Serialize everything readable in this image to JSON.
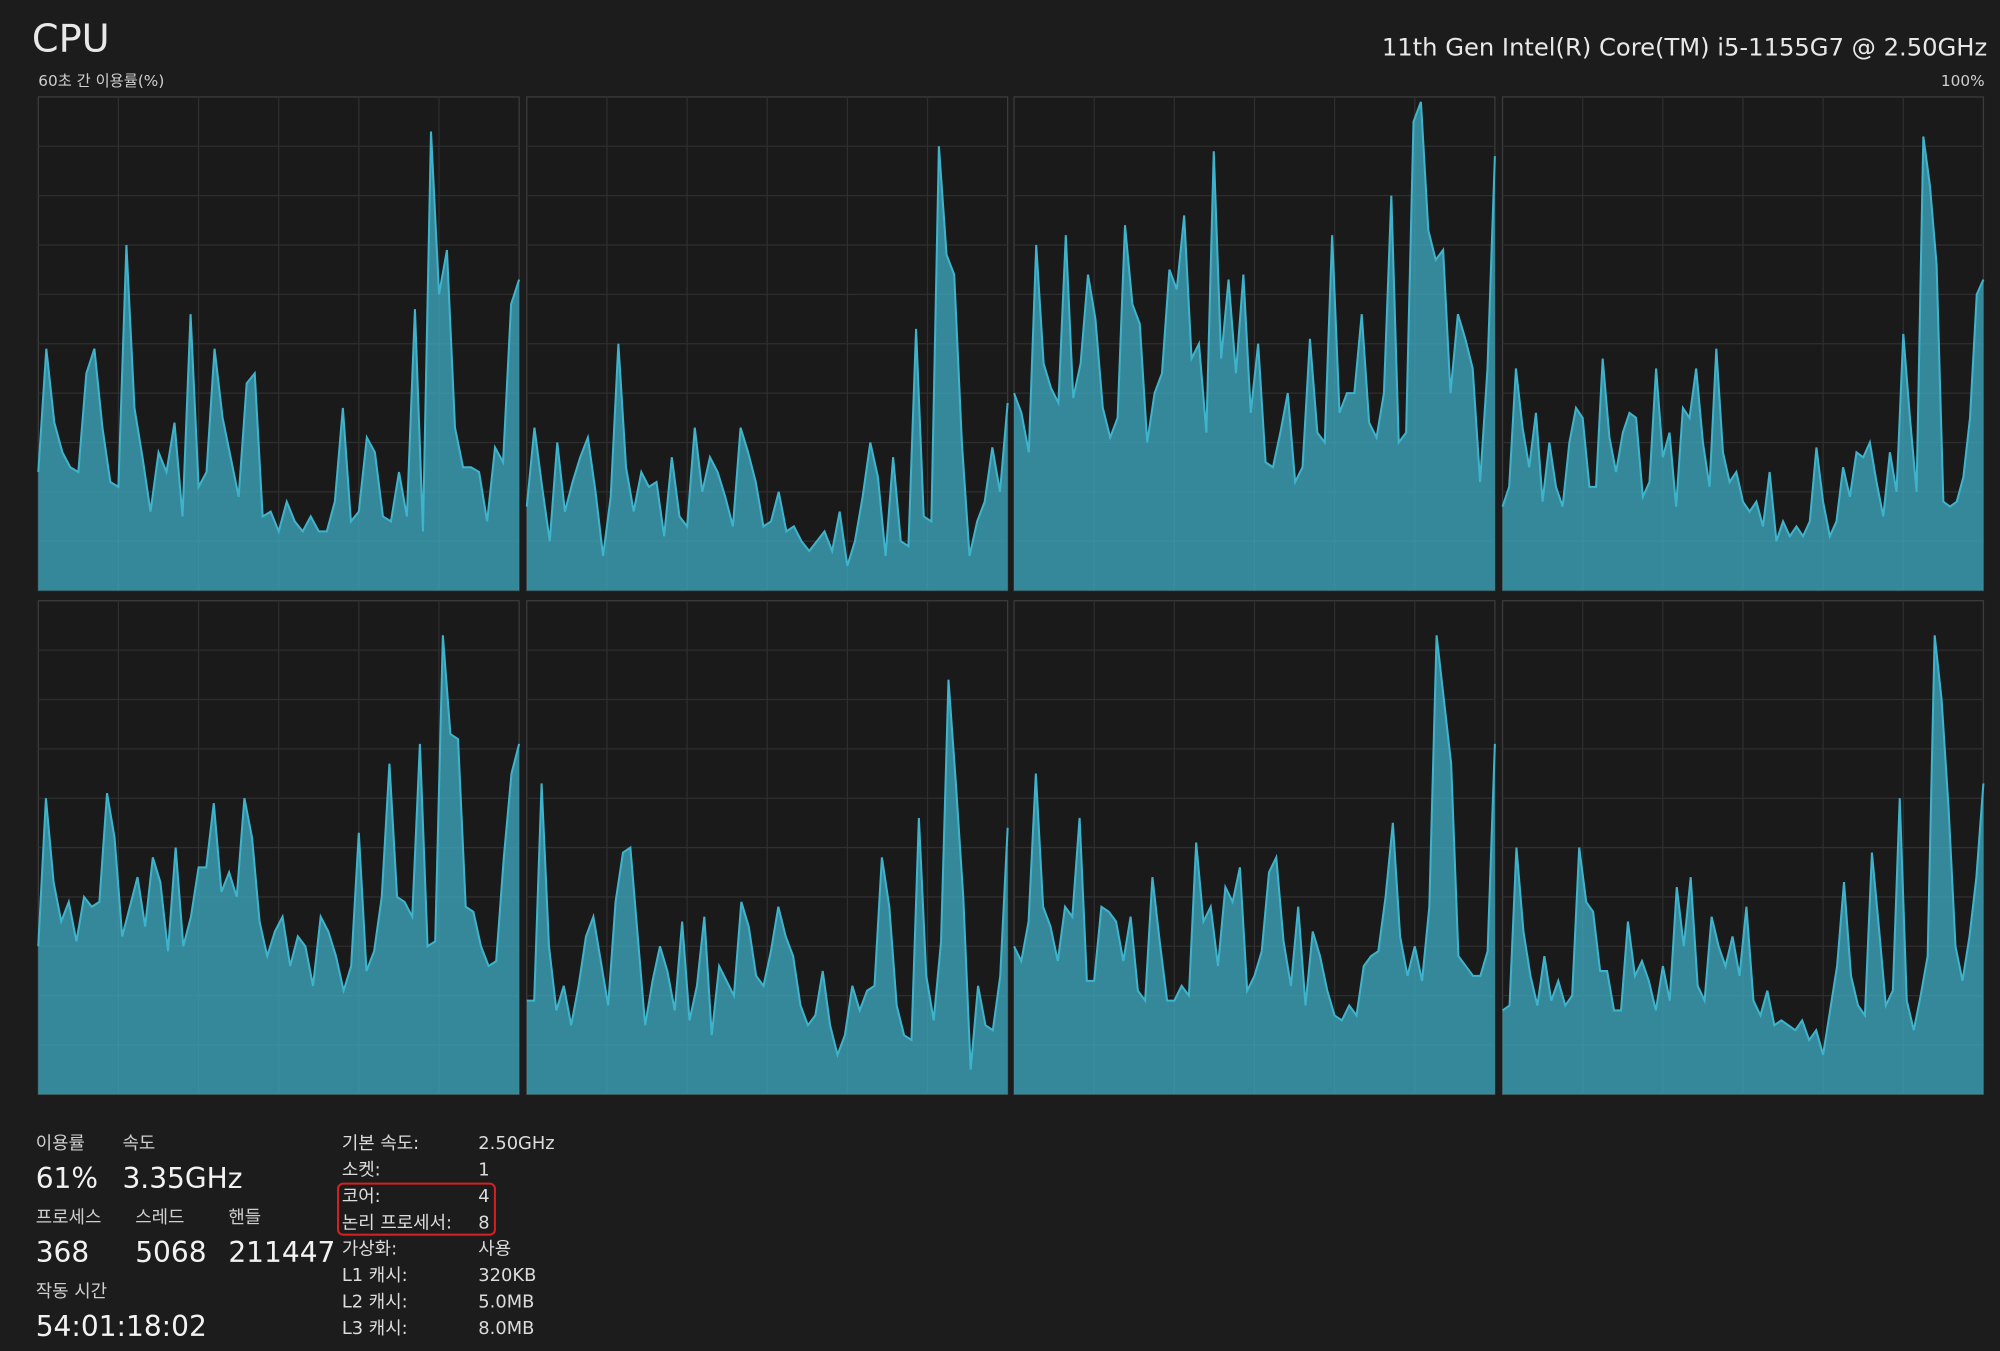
{
  "header": {
    "title": "CPU",
    "cpu_name": "11th Gen Intel(R) Core(TM) i5-1155G7 @ 2.50GHz",
    "axis_label": "60초 간 이용률(%)",
    "axis_max_label": "100%"
  },
  "chart_data": [
    {
      "type": "area",
      "ylim": [
        0,
        100
      ],
      "grid": true,
      "color": "#3fb3cb",
      "values": [
        24,
        49,
        34,
        28,
        25,
        24,
        44,
        49,
        33,
        22,
        21,
        70,
        37,
        27,
        16,
        28,
        24,
        34,
        15,
        56,
        21,
        24,
        49,
        35,
        27,
        19,
        42,
        44,
        15,
        16,
        12,
        18,
        14,
        12,
        15,
        12,
        12,
        18,
        37,
        14,
        16,
        31,
        28,
        15,
        14,
        24,
        15,
        57,
        12,
        93,
        60,
        69,
        33,
        25,
        25,
        24,
        14,
        29,
        26,
        58,
        63
      ]
    },
    {
      "type": "area",
      "ylim": [
        0,
        100
      ],
      "grid": true,
      "color": "#3fb3cb",
      "values": [
        17,
        33,
        21,
        10,
        30,
        16,
        22,
        27,
        31,
        20,
        7,
        19,
        50,
        25,
        16,
        24,
        21,
        22,
        11,
        27,
        15,
        13,
        33,
        20,
        27,
        24,
        19,
        13,
        33,
        28,
        22,
        13,
        14,
        20,
        12,
        13,
        10,
        8,
        10,
        12,
        8,
        16,
        5,
        10,
        19,
        30,
        23,
        7,
        27,
        10,
        9,
        53,
        15,
        14,
        90,
        68,
        64,
        30,
        7,
        14,
        18,
        29,
        20,
        38
      ]
    },
    {
      "type": "area",
      "ylim": [
        0,
        100
      ],
      "grid": true,
      "color": "#3fb3cb",
      "values": [
        40,
        36,
        28,
        70,
        46,
        41,
        38,
        72,
        39,
        46,
        64,
        55,
        37,
        31,
        35,
        74,
        58,
        54,
        30,
        40,
        44,
        65,
        61,
        76,
        47,
        50,
        32,
        89,
        47,
        63,
        44,
        64,
        36,
        50,
        26,
        25,
        32,
        40,
        22,
        25,
        51,
        32,
        30,
        72,
        36,
        40,
        40,
        56,
        34,
        31,
        40,
        80,
        30,
        32,
        95,
        99,
        73,
        67,
        69,
        40,
        56,
        51,
        45,
        22,
        45,
        88
      ]
    },
    {
      "type": "area",
      "ylim": [
        0,
        100
      ],
      "grid": true,
      "color": "#3fb3cb",
      "values": [
        17,
        21,
        45,
        33,
        25,
        36,
        18,
        30,
        21,
        17,
        30,
        37,
        35,
        21,
        21,
        47,
        31,
        24,
        32,
        36,
        35,
        19,
        22,
        45,
        27,
        32,
        17,
        37,
        35,
        45,
        30,
        21,
        49,
        28,
        22,
        24,
        18,
        16,
        18,
        13,
        24,
        10,
        14,
        11,
        13,
        11,
        14,
        29,
        18,
        11,
        14,
        25,
        19,
        28,
        27,
        30,
        22,
        15,
        28,
        20,
        52,
        35,
        20,
        92,
        82,
        66,
        18,
        17,
        18,
        23,
        35,
        60,
        63
      ]
    },
    {
      "type": "area",
      "ylim": [
        0,
        100
      ],
      "grid": true,
      "color": "#3fb3cb",
      "values": [
        30,
        60,
        43,
        35,
        39,
        31,
        40,
        38,
        39,
        61,
        52,
        32,
        38,
        44,
        34,
        48,
        43,
        29,
        50,
        30,
        36,
        46,
        46,
        59,
        41,
        45,
        40,
        60,
        52,
        35,
        28,
        33,
        36,
        26,
        32,
        30,
        22,
        36,
        33,
        28,
        21,
        26,
        53,
        25,
        29,
        40,
        67,
        40,
        39,
        36,
        71,
        30,
        31,
        93,
        73,
        72,
        38,
        37,
        30,
        26,
        27,
        48,
        65,
        71
      ]
    },
    {
      "type": "area",
      "ylim": [
        0,
        100
      ],
      "grid": true,
      "color": "#3fb3cb",
      "values": [
        19,
        19,
        63,
        30,
        17,
        22,
        14,
        22,
        32,
        36,
        27,
        18,
        39,
        49,
        50,
        32,
        14,
        23,
        30,
        25,
        17,
        35,
        15,
        22,
        36,
        12,
        26,
        23,
        20,
        39,
        34,
        24,
        22,
        29,
        38,
        32,
        28,
        18,
        14,
        16,
        25,
        14,
        8,
        12,
        22,
        17,
        21,
        22,
        48,
        38,
        18,
        12,
        11,
        56,
        24,
        15,
        31,
        84,
        63,
        40,
        5,
        22,
        14,
        13,
        24,
        54
      ]
    },
    {
      "type": "area",
      "ylim": [
        0,
        100
      ],
      "grid": true,
      "color": "#3fb3cb",
      "values": [
        30,
        27,
        35,
        65,
        38,
        34,
        27,
        38,
        36,
        56,
        23,
        23,
        38,
        37,
        35,
        27,
        36,
        21,
        19,
        44,
        31,
        19,
        19,
        22,
        20,
        51,
        35,
        38,
        26,
        42,
        39,
        46,
        21,
        24,
        29,
        45,
        48,
        31,
        22,
        38,
        18,
        33,
        28,
        21,
        16,
        15,
        18,
        16,
        26,
        28,
        29,
        40,
        55,
        32,
        24,
        30,
        23,
        38,
        93,
        80,
        67,
        28,
        26,
        24,
        24,
        29,
        71
      ]
    },
    {
      "type": "area",
      "ylim": [
        0,
        100
      ],
      "grid": true,
      "color": "#3fb3cb",
      "values": [
        17,
        18,
        50,
        33,
        24,
        18,
        28,
        19,
        23,
        18,
        20,
        50,
        39,
        37,
        25,
        25,
        17,
        17,
        35,
        24,
        27,
        23,
        17,
        26,
        19,
        42,
        30,
        44,
        22,
        19,
        36,
        30,
        26,
        32,
        24,
        38,
        19,
        16,
        21,
        14,
        15,
        14,
        13,
        15,
        11,
        13,
        8,
        17,
        26,
        43,
        24,
        18,
        16,
        49,
        34,
        18,
        21,
        60,
        19,
        13,
        20,
        28,
        93,
        80,
        58,
        30,
        23,
        32,
        44,
        63
      ]
    }
  ],
  "stats": {
    "utilization_label": "이용률",
    "utilization": "61%",
    "speed_label": "속도",
    "speed": "3.35GHz",
    "processes_label": "프로세스",
    "processes": 368,
    "threads_label": "스레드",
    "threads": 5068,
    "handles_label": "핸들",
    "handles": 211447,
    "uptime_label": "작동 시간",
    "uptime": "54:01:18:02"
  },
  "details": [
    [
      "기본 속도:",
      "2.50GHz"
    ],
    [
      "소켓:",
      1
    ],
    [
      "코어:",
      4
    ],
    [
      "논리 프로세서:",
      8
    ],
    [
      "가상화:",
      "사용"
    ],
    [
      "L1 캐시:",
      "320KB"
    ],
    [
      "L2 캐시:",
      "5.0MB"
    ],
    [
      "L3 캐시:",
      "8.0MB"
    ]
  ]
}
